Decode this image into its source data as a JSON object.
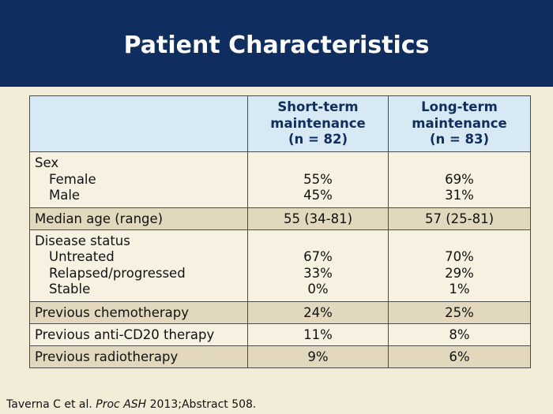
{
  "title": "Patient Characteristics",
  "table": {
    "columns": {
      "short_term": [
        "Short-term",
        "maintenance",
        "(n = 82)"
      ],
      "long_term": [
        "Long-term",
        "maintenance",
        "(n = 83)"
      ]
    },
    "sex": {
      "label": "Sex",
      "female": {
        "label": "Female",
        "short": "55%",
        "long": "69%"
      },
      "male": {
        "label": "Male",
        "short": "45%",
        "long": "31%"
      }
    },
    "median_age": {
      "label": "Median age (range)",
      "short": "55 (34-81)",
      "long": "57 (25-81)"
    },
    "disease_status": {
      "label": "Disease status",
      "untreated": {
        "label": "Untreated",
        "short": "67%",
        "long": "70%"
      },
      "relapsed": {
        "label": "Relapsed/progressed",
        "short": "33%",
        "long": "29%"
      },
      "stable": {
        "label": "Stable",
        "short": "0%",
        "long": "1%"
      }
    },
    "prev_chemo": {
      "label": "Previous chemotherapy",
      "short": "24%",
      "long": "25%"
    },
    "prev_antiCD20": {
      "label": "Previous anti-CD20 therapy",
      "short": "11%",
      "long": "8%"
    },
    "prev_radio": {
      "label": "Previous radiotherapy",
      "short": "9%",
      "long": "6%"
    }
  },
  "citation": {
    "prefix": "Taverna C et al. ",
    "journal": "Proc ASH",
    "suffix": " 2013;Abstract 508."
  }
}
